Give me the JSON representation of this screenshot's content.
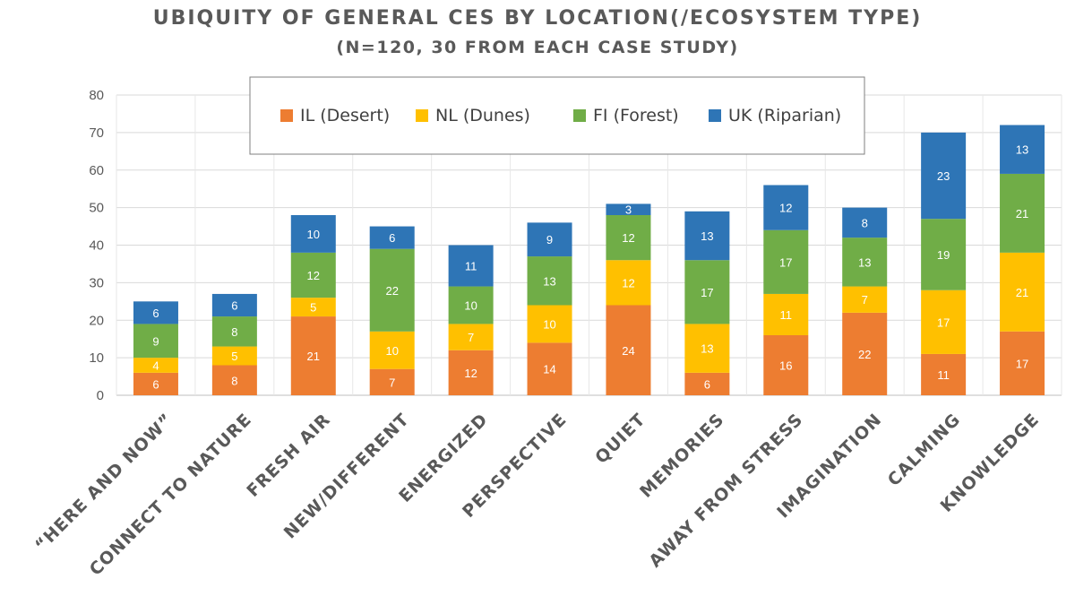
{
  "chart_data": {
    "type": "bar",
    "stacked": true,
    "title": "UBIQUITY OF GENERAL CES BY LOCATION(/ECOSYSTEM TYPE)",
    "subtitle": "(N=120, 30 FROM EACH CASE STUDY)",
    "categories": [
      "“HERE AND NOW”",
      "CONNECT TO NATURE",
      "FRESH AIR",
      "NEW/DIFFERENT",
      "ENERGIZED",
      "PERSPECTIVE",
      "QUIET",
      "MEMORIES",
      "AWAY FROM STRESS",
      "IMAGINATION",
      "CALMING",
      "KNOWLEDGE"
    ],
    "series": [
      {
        "name": "IL (Desert)",
        "color": "#ED7D31",
        "values": [
          6,
          8,
          21,
          7,
          12,
          14,
          24,
          6,
          16,
          22,
          11,
          17
        ]
      },
      {
        "name": "NL (Dunes)",
        "color": "#FFC000",
        "values": [
          4,
          5,
          5,
          10,
          7,
          10,
          12,
          13,
          11,
          7,
          17,
          21
        ]
      },
      {
        "name": "FI (Forest)",
        "color": "#70AD47",
        "values": [
          9,
          8,
          12,
          22,
          10,
          13,
          12,
          17,
          17,
          13,
          19,
          21
        ]
      },
      {
        "name": "UK (Riparian)",
        "color": "#2E75B6",
        "values": [
          6,
          6,
          10,
          6,
          11,
          9,
          3,
          13,
          12,
          8,
          23,
          13
        ]
      }
    ],
    "ylim": [
      0,
      80
    ],
    "yticks": [
      0,
      10,
      20,
      30,
      40,
      50,
      60,
      70,
      80
    ],
    "grid": true,
    "legend_position": "top-center"
  }
}
